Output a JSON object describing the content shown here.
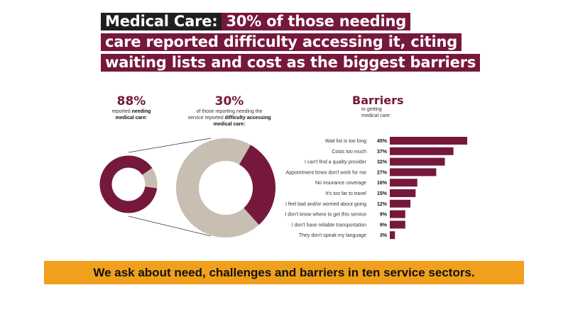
{
  "title": {
    "lead": "Medical Care:",
    "line1": "30% of those needing",
    "line2": "care reported difficulty accessing it, citing",
    "line3": "waiting lists and cost as the biggest barriers"
  },
  "stat_need": {
    "value": "88%",
    "text1": "reported ",
    "bold1": "needing",
    "text2": "medical care:"
  },
  "stat_difficulty": {
    "value": "30%",
    "text1": "of those reporting needing the",
    "text2": "service reported ",
    "bold1": "difficulty accessing",
    "bold2": "medical care:"
  },
  "barriers_header": {
    "title": "Barriers",
    "sub1": "to getting",
    "sub2": "medical care:"
  },
  "colors": {
    "maroon": "#76183b",
    "beige": "#c8beb2",
    "orange": "#f0a01c",
    "dark": "#1f1f1f"
  },
  "chart_data": [
    {
      "type": "pie",
      "variant": "donut",
      "slices": [
        {
          "name": "needing medical care",
          "value": 88
        },
        {
          "name": "not needing",
          "value": 12
        }
      ]
    },
    {
      "type": "pie",
      "variant": "donut",
      "slices": [
        {
          "name": "difficulty accessing",
          "value": 30
        },
        {
          "name": "no difficulty",
          "value": 70
        }
      ]
    },
    {
      "type": "bar",
      "orientation": "horizontal",
      "title": "Barriers",
      "categories": [
        "Wait list is too long",
        "Costs too much",
        "I can't find a quality provider",
        "Appointment times don't work for me",
        "No insurance coverage",
        "It's too far to travel",
        "I feel bad and/or worried about going",
        "I don't know where to get this service",
        "I don't have reliable transportation",
        "They don't speak my language"
      ],
      "values": [
        45,
        37,
        32,
        27,
        16,
        15,
        12,
        9,
        9,
        3
      ],
      "value_labels": [
        "45%",
        "37%",
        "32%",
        "27%",
        "16%",
        "15%",
        "12%",
        "9%",
        "9%",
        "3%"
      ],
      "xlim": [
        0,
        45
      ],
      "grid": false
    }
  ],
  "banner": {
    "text": "We ask about need, challenges and barriers in ten service sectors."
  }
}
